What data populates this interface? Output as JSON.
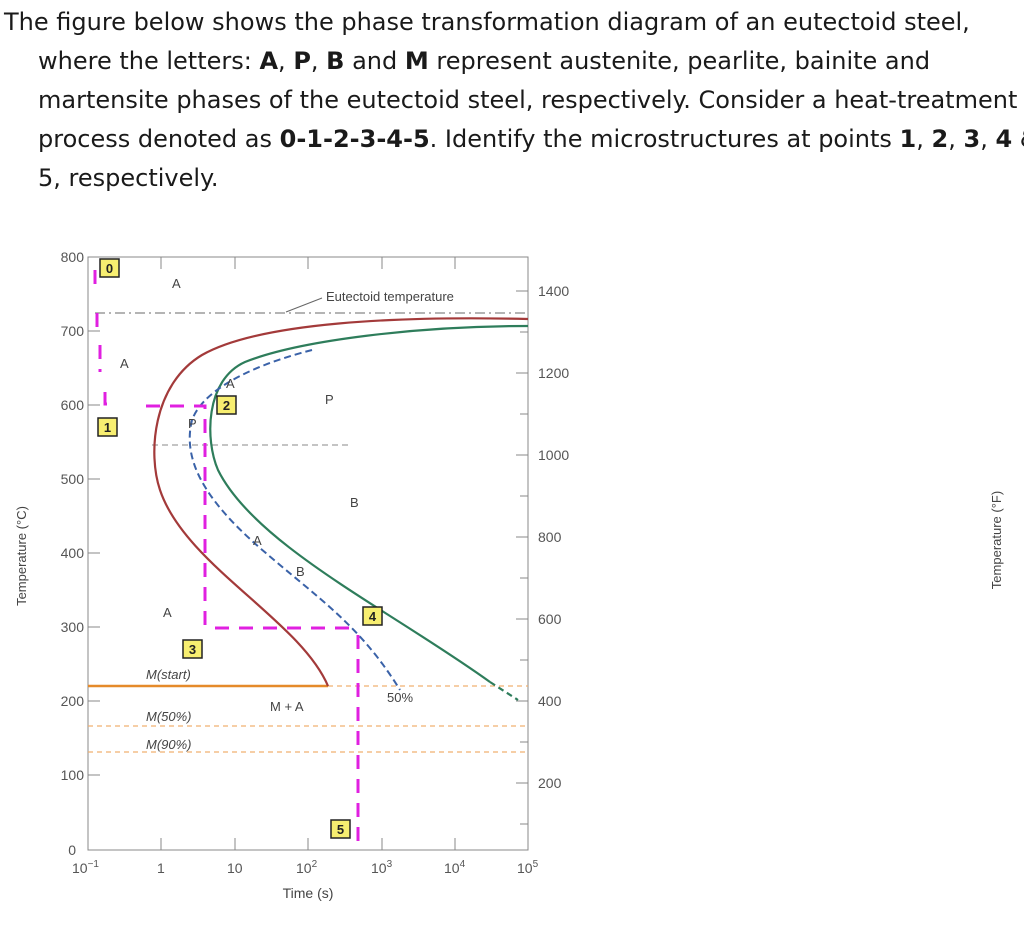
{
  "question": {
    "line1": "The figure below shows the phase transformation diagram of an eutectoid steel,",
    "line2_parts": [
      "where the letters: ",
      "A",
      ", ",
      "P",
      ", ",
      "B",
      " and ",
      "M",
      " represent austenite, pearlite, bainite and"
    ],
    "line3": "martensite phases of the eutectoid steel, respectively. Consider a heat-treatment",
    "line4_parts": [
      "process denoted as ",
      "0-1-2-3-4-5",
      ". Identify the microstructures at points ",
      "1",
      ", ",
      "2",
      ", ",
      "3",
      ", ",
      "4",
      " &"
    ],
    "line5": "5, respectively."
  },
  "diagram": {
    "left_axis_label": "Temperature (°C)",
    "right_axis_label": "Temperature (°F)",
    "x_axis_label": "Time (s)",
    "left_ticks": [
      "800",
      "700",
      "600",
      "500",
      "400",
      "300",
      "200",
      "100",
      "0"
    ],
    "right_ticks": [
      "1400",
      "1200",
      "1000",
      "800",
      "600",
      "400",
      "200"
    ],
    "x_ticks": [
      "10",
      "1",
      "10",
      "10",
      "10",
      "10",
      "10"
    ],
    "x_tick_exponents": [
      "−1",
      "",
      "",
      "2",
      "3",
      "4",
      "5"
    ],
    "region_labels": {
      "eutectoid": "Eutectoid temperature",
      "a_top": "A",
      "a_left": "A",
      "a_curve": "A",
      "p_upper": "P",
      "p_mid": "P",
      "b": "B",
      "a_lower": "A",
      "b_lower": "B",
      "a_bottom": "A",
      "m_start": "M(start)",
      "m_50": "M(50%)",
      "m_90": "M(90%)",
      "m_plus_a": "M + A",
      "fifty_percent": "50%"
    },
    "points": [
      "0",
      "1",
      "2",
      "3",
      "4",
      "5"
    ],
    "colors": {
      "start_curve": "#a33a3a",
      "finish_curve": "#2e7d5b",
      "fifty_curve": "#3a62a8",
      "path": "#e020e0",
      "martensite": "#e58a2a",
      "point_box": "#f7ee70"
    }
  }
}
